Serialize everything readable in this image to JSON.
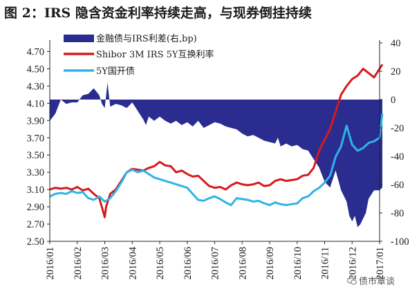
{
  "title": "图 2：IRS 隐含资金利率持续走高，与现券倒挂持续",
  "watermark": "债市覃谈",
  "chart_data": {
    "type": "line",
    "x_categories": [
      "2016/01",
      "2016/02",
      "2016/03",
      "2016/04",
      "2016/05",
      "2016/06",
      "2016/07",
      "2016/08",
      "2016/09",
      "2016/10",
      "2016/11",
      "2016/12",
      "2017/01"
    ],
    "y_left": {
      "range": [
        2.5,
        4.8
      ],
      "ticks": [
        "4.70",
        "4.50",
        "4.30",
        "4.10",
        "3.90",
        "3.70",
        "3.50",
        "3.30",
        "3.10",
        "2.90",
        "2.70",
        "2.50"
      ]
    },
    "y_right": {
      "range": [
        -100,
        40
      ],
      "ticks": [
        "40",
        "20",
        "0",
        "-20",
        "-40",
        "-60",
        "-80",
        "-100"
      ]
    },
    "series": [
      {
        "name": "金融债与IRS利差(右,bp)",
        "type": "area",
        "axis": "right",
        "color": "#2a2d8f",
        "values": [
          [
            0,
            -15
          ],
          [
            0.2,
            -10
          ],
          [
            0.4,
            0
          ],
          [
            0.6,
            -3
          ],
          [
            0.8,
            -2
          ],
          [
            1.0,
            -2
          ],
          [
            1.2,
            3
          ],
          [
            1.4,
            4
          ],
          [
            1.6,
            8
          ],
          [
            1.8,
            3
          ],
          [
            1.9,
            -3
          ],
          [
            2.0,
            -6
          ],
          [
            2.1,
            12
          ],
          [
            2.2,
            -5
          ],
          [
            2.4,
            -3
          ],
          [
            2.6,
            -4
          ],
          [
            2.8,
            -6
          ],
          [
            3.0,
            -2
          ],
          [
            3.2,
            -8
          ],
          [
            3.4,
            -14
          ],
          [
            3.5,
            -18
          ],
          [
            3.6,
            -12
          ],
          [
            3.8,
            -15
          ],
          [
            4.0,
            -12
          ],
          [
            4.2,
            -15
          ],
          [
            4.4,
            -17
          ],
          [
            4.6,
            -15
          ],
          [
            4.8,
            -18
          ],
          [
            5.0,
            -16
          ],
          [
            5.2,
            -19
          ],
          [
            5.4,
            -15
          ],
          [
            5.6,
            -20
          ],
          [
            5.8,
            -18
          ],
          [
            6.0,
            -16
          ],
          [
            6.2,
            -17
          ],
          [
            6.4,
            -19
          ],
          [
            6.6,
            -20
          ],
          [
            6.8,
            -21
          ],
          [
            7.0,
            -24
          ],
          [
            7.2,
            -26
          ],
          [
            7.4,
            -25
          ],
          [
            7.6,
            -27
          ],
          [
            7.8,
            -29
          ],
          [
            8.0,
            -30
          ],
          [
            8.2,
            -31
          ],
          [
            8.3,
            -27
          ],
          [
            8.4,
            -33
          ],
          [
            8.6,
            -31
          ],
          [
            8.8,
            -33
          ],
          [
            9.0,
            -32
          ],
          [
            9.2,
            -35
          ],
          [
            9.4,
            -36
          ],
          [
            9.6,
            -42
          ],
          [
            9.8,
            -48
          ],
          [
            10.0,
            -58
          ],
          [
            10.2,
            -62
          ],
          [
            10.4,
            -50
          ],
          [
            10.6,
            -64
          ],
          [
            10.8,
            -72
          ],
          [
            10.9,
            -82
          ],
          [
            11.0,
            -86
          ],
          [
            11.1,
            -82
          ],
          [
            11.2,
            -90
          ],
          [
            11.3,
            -88
          ],
          [
            11.5,
            -80
          ],
          [
            11.6,
            -70
          ],
          [
            11.8,
            -64
          ],
          [
            12.0,
            -64
          ],
          [
            12.1,
            -62
          ]
        ]
      },
      {
        "name": "Shibor 3M IRS 5Y互换利率",
        "type": "line",
        "axis": "left",
        "color": "#d7191c",
        "values": [
          [
            0,
            3.1
          ],
          [
            0.2,
            3.12
          ],
          [
            0.4,
            3.11
          ],
          [
            0.6,
            3.12
          ],
          [
            0.8,
            3.1
          ],
          [
            1.0,
            3.13
          ],
          [
            1.2,
            3.09
          ],
          [
            1.4,
            3.11
          ],
          [
            1.6,
            3.05
          ],
          [
            1.8,
            3.0
          ],
          [
            2.0,
            2.78
          ],
          [
            2.05,
            2.9
          ],
          [
            2.2,
            3.05
          ],
          [
            2.4,
            3.1
          ],
          [
            2.6,
            3.2
          ],
          [
            2.8,
            3.3
          ],
          [
            3.0,
            3.34
          ],
          [
            3.2,
            3.33
          ],
          [
            3.4,
            3.32
          ],
          [
            3.6,
            3.35
          ],
          [
            3.8,
            3.37
          ],
          [
            4.0,
            3.42
          ],
          [
            4.2,
            3.38
          ],
          [
            4.4,
            3.37
          ],
          [
            4.6,
            3.3
          ],
          [
            4.8,
            3.32
          ],
          [
            5.0,
            3.28
          ],
          [
            5.2,
            3.25
          ],
          [
            5.4,
            3.26
          ],
          [
            5.6,
            3.2
          ],
          [
            5.8,
            3.14
          ],
          [
            6.0,
            3.12
          ],
          [
            6.2,
            3.13
          ],
          [
            6.4,
            3.1
          ],
          [
            6.6,
            3.15
          ],
          [
            6.8,
            3.18
          ],
          [
            7.0,
            3.16
          ],
          [
            7.2,
            3.15
          ],
          [
            7.4,
            3.16
          ],
          [
            7.6,
            3.18
          ],
          [
            7.8,
            3.14
          ],
          [
            8.0,
            3.15
          ],
          [
            8.2,
            3.2
          ],
          [
            8.4,
            3.22
          ],
          [
            8.6,
            3.2
          ],
          [
            8.8,
            3.21
          ],
          [
            9.0,
            3.22
          ],
          [
            9.2,
            3.26
          ],
          [
            9.4,
            3.27
          ],
          [
            9.6,
            3.35
          ],
          [
            9.8,
            3.55
          ],
          [
            10.0,
            3.68
          ],
          [
            10.2,
            3.8
          ],
          [
            10.4,
            4.0
          ],
          [
            10.6,
            4.2
          ],
          [
            10.8,
            4.3
          ],
          [
            11.0,
            4.38
          ],
          [
            11.2,
            4.42
          ],
          [
            11.4,
            4.5
          ],
          [
            11.6,
            4.45
          ],
          [
            11.8,
            4.4
          ],
          [
            12.0,
            4.5
          ],
          [
            12.1,
            4.55
          ]
        ]
      },
      {
        "name": "5Y国开债",
        "type": "line",
        "axis": "left",
        "color": "#2eb4e6",
        "values": [
          [
            0,
            3.02
          ],
          [
            0.2,
            3.05
          ],
          [
            0.4,
            3.06
          ],
          [
            0.6,
            3.05
          ],
          [
            0.8,
            3.08
          ],
          [
            1.0,
            3.06
          ],
          [
            1.2,
            3.07
          ],
          [
            1.4,
            3.0
          ],
          [
            1.6,
            2.98
          ],
          [
            1.8,
            3.02
          ],
          [
            2.0,
            2.96
          ],
          [
            2.2,
            3.0
          ],
          [
            2.4,
            3.08
          ],
          [
            2.6,
            3.18
          ],
          [
            2.8,
            3.3
          ],
          [
            3.0,
            3.33
          ],
          [
            3.2,
            3.3
          ],
          [
            3.4,
            3.32
          ],
          [
            3.6,
            3.28
          ],
          [
            3.8,
            3.24
          ],
          [
            4.0,
            3.22
          ],
          [
            4.2,
            3.2
          ],
          [
            4.4,
            3.18
          ],
          [
            4.6,
            3.16
          ],
          [
            4.8,
            3.14
          ],
          [
            5.0,
            3.12
          ],
          [
            5.2,
            3.05
          ],
          [
            5.4,
            2.98
          ],
          [
            5.6,
            2.97
          ],
          [
            5.8,
            3.0
          ],
          [
            6.0,
            3.02
          ],
          [
            6.2,
            2.99
          ],
          [
            6.4,
            2.95
          ],
          [
            6.6,
            2.92
          ],
          [
            6.8,
            3.0
          ],
          [
            7.0,
            2.99
          ],
          [
            7.2,
            2.98
          ],
          [
            7.4,
            2.96
          ],
          [
            7.6,
            2.97
          ],
          [
            7.8,
            2.94
          ],
          [
            8.0,
            2.92
          ],
          [
            8.2,
            2.95
          ],
          [
            8.4,
            2.93
          ],
          [
            8.6,
            2.92
          ],
          [
            8.8,
            2.93
          ],
          [
            9.0,
            2.94
          ],
          [
            9.2,
            3.0
          ],
          [
            9.4,
            3.02
          ],
          [
            9.6,
            3.08
          ],
          [
            9.8,
            3.12
          ],
          [
            10.0,
            3.18
          ],
          [
            10.2,
            3.26
          ],
          [
            10.4,
            3.48
          ],
          [
            10.6,
            3.6
          ],
          [
            10.8,
            3.84
          ],
          [
            11.0,
            3.62
          ],
          [
            11.2,
            3.55
          ],
          [
            11.4,
            3.58
          ],
          [
            11.6,
            3.64
          ],
          [
            11.8,
            3.66
          ],
          [
            12.0,
            3.7
          ],
          [
            12.1,
            3.98
          ]
        ]
      }
    ]
  }
}
